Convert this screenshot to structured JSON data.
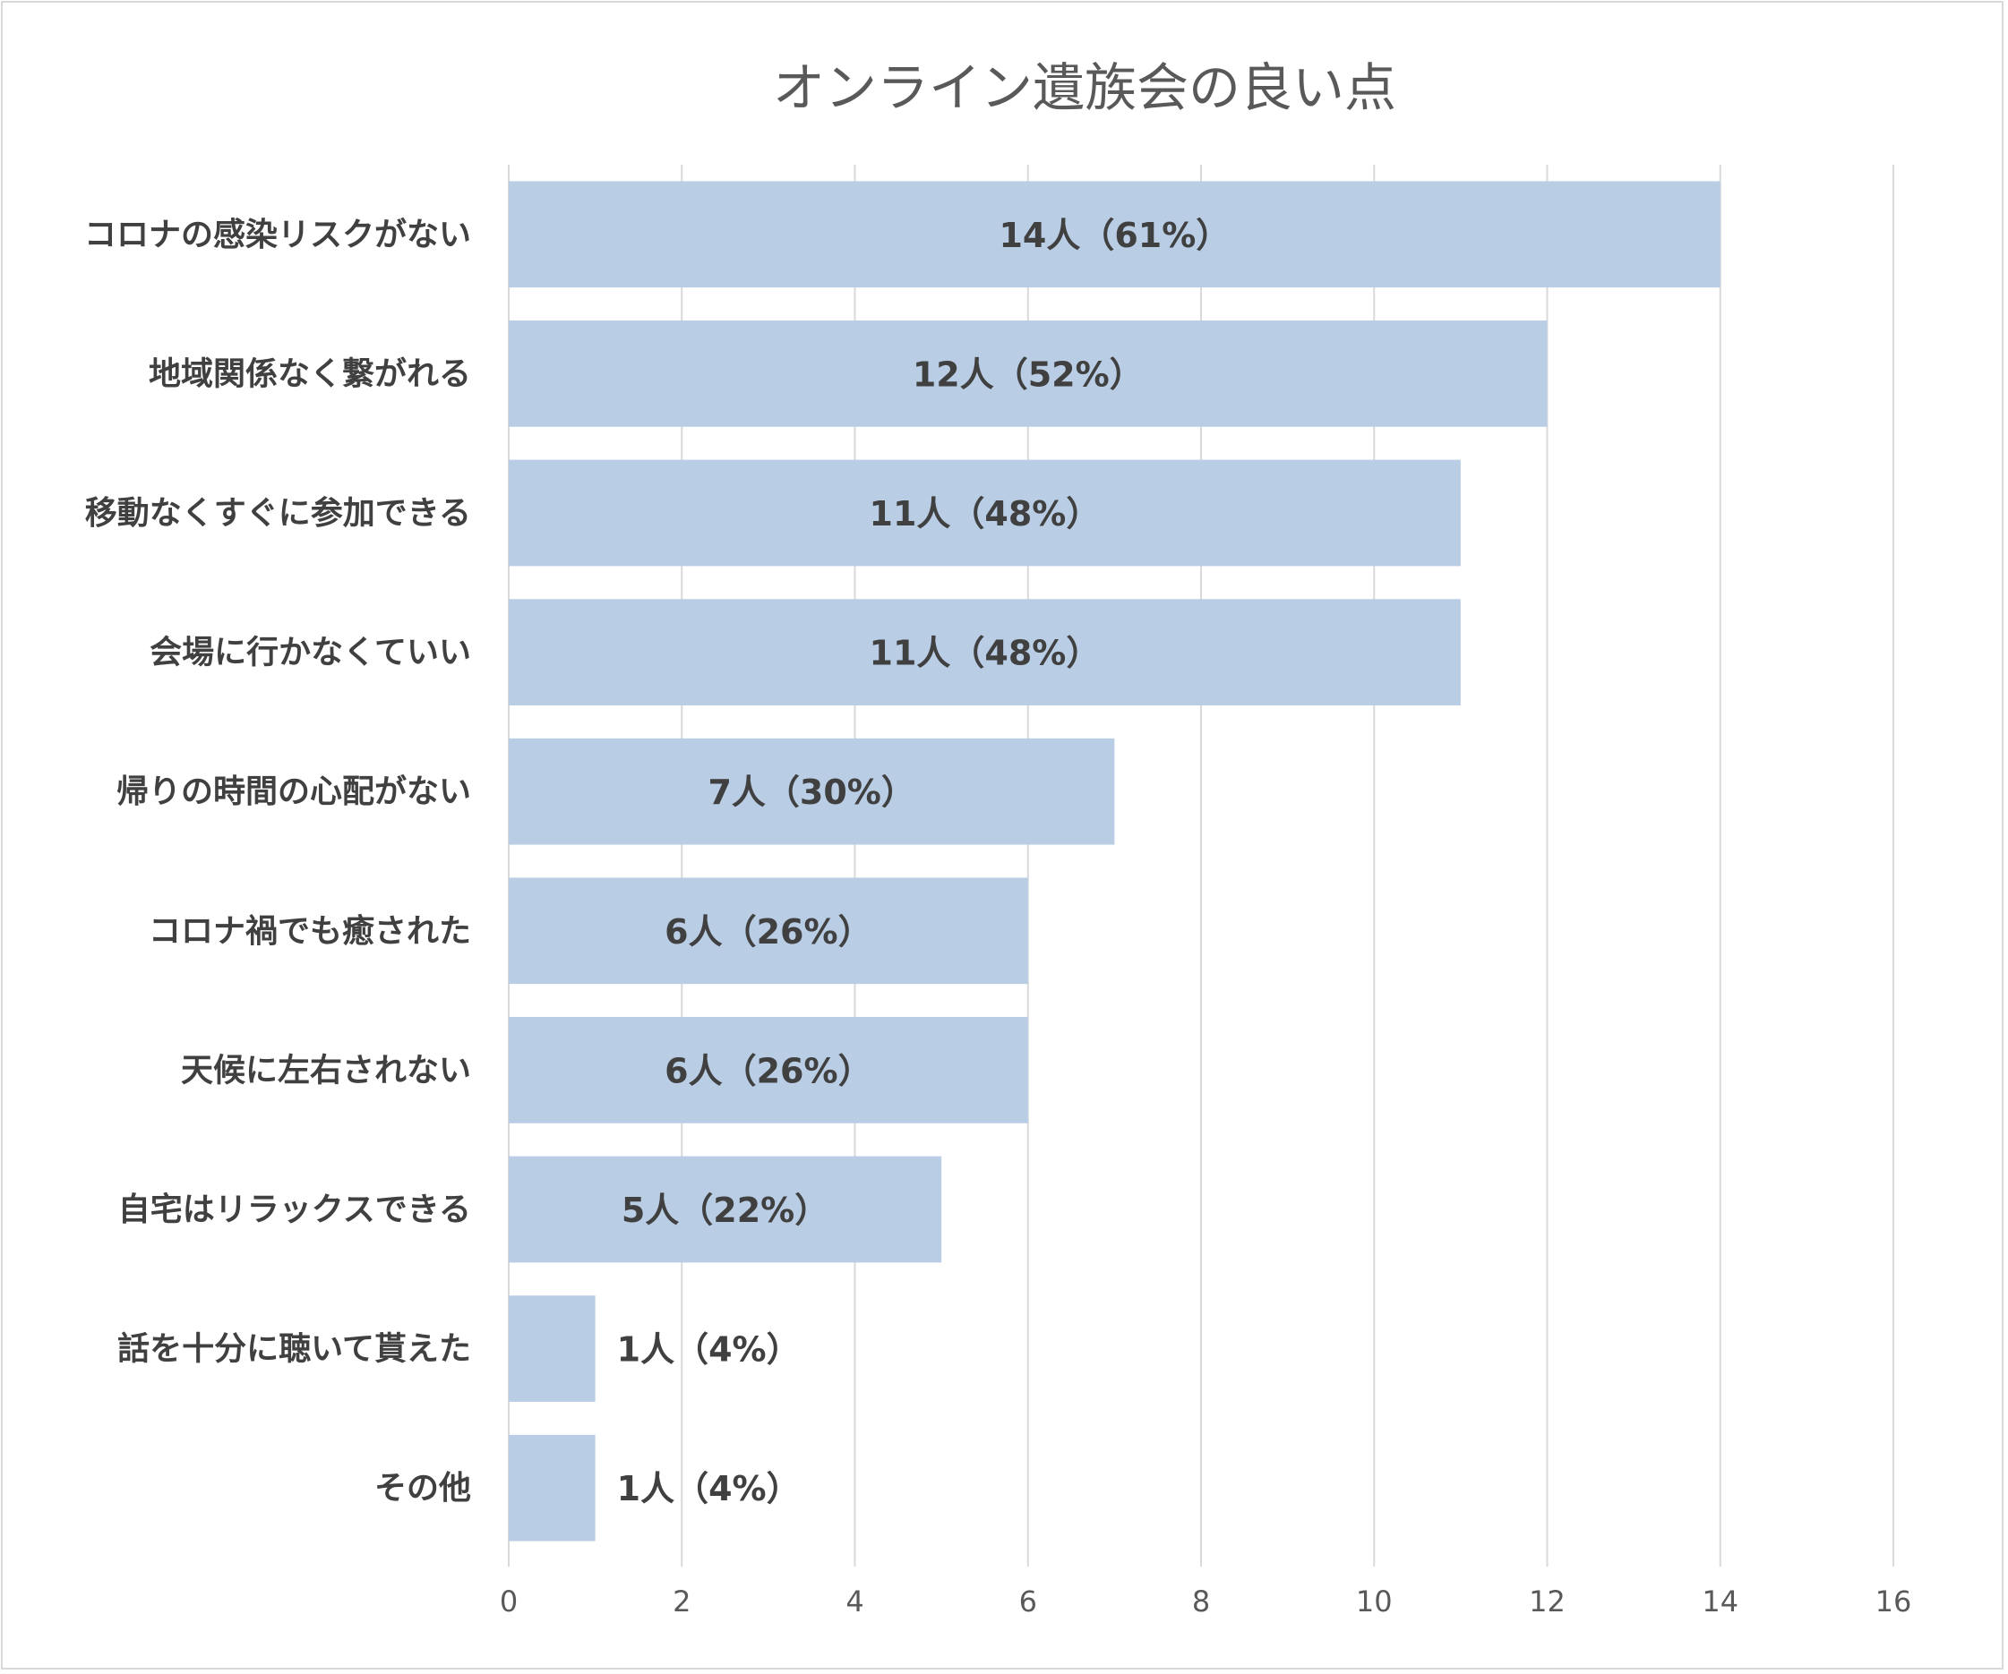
{
  "chart_data": {
    "type": "bar",
    "orientation": "horizontal",
    "title": "オンライン遺族会の良い点",
    "categories": [
      "コロナの感染リスクがない",
      "地域関係なく繋がれる",
      "移動なくすぐに参加できる",
      "会場に行かなくていい",
      "帰りの時間の心配がない",
      "コロナ禍でも癒された",
      "天候に左右されない",
      "自宅はリラックスできる",
      "話を十分に聴いて貰えた",
      "その他"
    ],
    "values": [
      14,
      12,
      11,
      11,
      7,
      6,
      6,
      5,
      1,
      1
    ],
    "data_labels": [
      "14人（61%）",
      "12人（52%）",
      "11人（48%）",
      "11人（48%）",
      "7人（30%）",
      "6人（26%）",
      "6人（26%）",
      "5人（22%）",
      "1人（4%）",
      "1人（4%）"
    ],
    "xlim": [
      0,
      16
    ],
    "x_ticks": [
      "0",
      "2",
      "4",
      "6",
      "8",
      "10",
      "12",
      "14",
      "16"
    ],
    "xlabel": "",
    "ylabel": "",
    "grid": true,
    "bar_color": "#b9cde5",
    "grid_color": "#d9d9d9"
  }
}
